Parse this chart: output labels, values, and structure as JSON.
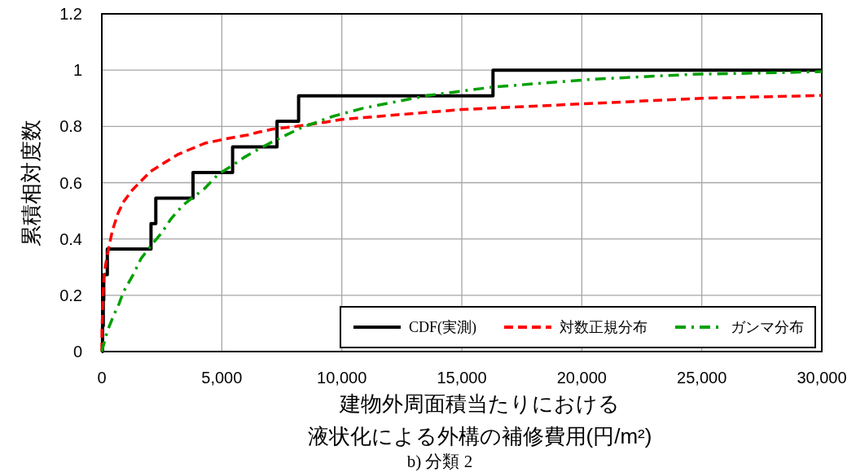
{
  "chart_data": {
    "type": "line",
    "xlabel": "建物外周面積当たりにおける液状化による外構の補修費用(円/m²)",
    "ylabel": "累積相対度数",
    "annotations": [
      "b) 分類 2"
    ],
    "xlim": [
      0,
      30000
    ],
    "ylim": [
      0,
      1.2
    ],
    "xticks": [
      0,
      {
        "value": 5000,
        "label": "5,000"
      },
      {
        "value": 10000,
        "label": "10,000"
      },
      {
        "value": 15000,
        "label": "15,000"
      },
      {
        "value": 20000,
        "label": "20,000"
      },
      {
        "value": 25000,
        "label": "25,000"
      },
      {
        "value": 30000,
        "label": "30,000"
      }
    ],
    "yticks": [
      0,
      0.2,
      0.4,
      0.6,
      0.8,
      1,
      1.2
    ],
    "grid": true,
    "legend": "bottom right",
    "series": [
      {
        "name": "CDF(実測)",
        "type": "step",
        "color": "#000000",
        "line_style": "solid",
        "x": [
          0,
          30,
          60,
          80,
          230,
          2050,
          2250,
          3800,
          5450,
          7300,
          8200,
          16300,
          30000
        ],
        "values": [
          0,
          0.091,
          0.182,
          0.273,
          0.364,
          0.455,
          0.545,
          0.636,
          0.727,
          0.818,
          0.909,
          1,
          1
        ]
      },
      {
        "name": "対数正規分布",
        "type": "line",
        "color": "#ff0000",
        "line_style": "dashed",
        "x": [
          0,
          10,
          45,
          100,
          270,
          440,
          670,
          890,
          1230,
          1570,
          2030,
          2590,
          3160,
          3720,
          4290,
          4850,
          5420,
          6100,
          6550,
          7100,
          8100,
          9300,
          10000,
          15000,
          20000,
          25000,
          30000
        ],
        "values": [
          0,
          0.08,
          0.19,
          0.28,
          0.36,
          0.43,
          0.49,
          0.53,
          0.57,
          0.6,
          0.64,
          0.67,
          0.7,
          0.72,
          0.74,
          0.75,
          0.76,
          0.77,
          0.78,
          0.79,
          0.8,
          0.815,
          0.825,
          0.86,
          0.88,
          0.9,
          0.91
        ]
      },
      {
        "name": "ガンマ分布",
        "type": "line",
        "color": "#00a000",
        "line_style": "dashdot",
        "x": [
          0,
          30,
          220,
          500,
          720,
          890,
          1350,
          1630,
          2080,
          2480,
          2870,
          3380,
          3830,
          4290,
          4850,
          5420,
          5930,
          6550,
          7100,
          8300,
          9600,
          10900,
          13600,
          16300,
          20500,
          24600,
          28700,
          30000
        ],
        "values": [
          0,
          0.01,
          0.07,
          0.13,
          0.17,
          0.21,
          0.28,
          0.33,
          0.38,
          0.42,
          0.47,
          0.52,
          0.55,
          0.58,
          0.63,
          0.66,
          0.69,
          0.72,
          0.745,
          0.795,
          0.835,
          0.865,
          0.91,
          0.94,
          0.968,
          0.985,
          0.992,
          0.995
        ]
      }
    ]
  }
}
